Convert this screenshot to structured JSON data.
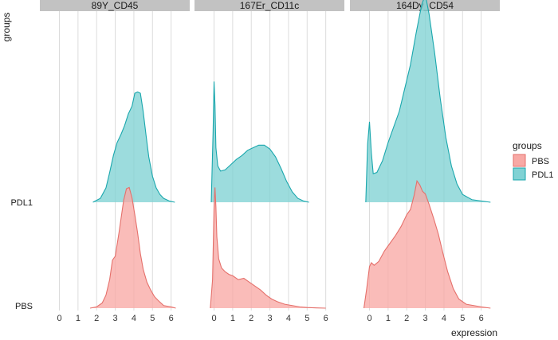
{
  "chart_data": {
    "type": "ridgeline",
    "xlabel": "expression",
    "ylabel": "groups",
    "x_ticks": [
      0,
      1,
      2,
      3,
      4,
      5,
      6
    ],
    "xlim": [
      -1.05,
      7.0
    ],
    "groups": [
      "PBS",
      "PDL1"
    ],
    "legend": {
      "title": "groups",
      "position": "right",
      "entries": [
        {
          "label": "PBS",
          "fill": "#f8a9a5",
          "line": "#e5706b"
        },
        {
          "label": "PDL1",
          "fill": "#80d2d4",
          "line": "#1aa7ad"
        }
      ]
    },
    "panels": [
      {
        "title": "89Y_CD45",
        "series": [
          {
            "name": "PBS",
            "x": [
              1.65,
              2.0,
              2.3,
              2.5,
              2.7,
              2.85,
              3.0,
              3.2,
              3.45,
              3.6,
              3.75,
              3.9,
              4.05,
              4.2,
              4.35,
              4.5,
              4.7,
              4.9,
              5.1,
              5.3,
              5.6,
              6.0,
              6.25
            ],
            "y": [
              0.0,
              0.01,
              0.04,
              0.1,
              0.22,
              0.37,
              0.4,
              0.58,
              0.83,
              0.92,
              0.93,
              0.85,
              0.72,
              0.58,
              0.42,
              0.3,
              0.2,
              0.14,
              0.09,
              0.06,
              0.02,
              0.01,
              0.0
            ]
          },
          {
            "name": "PDL1",
            "x": [
              1.8,
              2.2,
              2.5,
              2.7,
              2.9,
              3.1,
              3.3,
              3.5,
              3.7,
              3.9,
              4.05,
              4.2,
              4.35,
              4.5,
              4.65,
              4.8,
              5.0,
              5.2,
              5.4,
              5.6,
              5.9,
              6.2
            ],
            "y": [
              0.0,
              0.03,
              0.11,
              0.23,
              0.36,
              0.46,
              0.52,
              0.59,
              0.68,
              0.74,
              0.84,
              0.85,
              0.84,
              0.7,
              0.52,
              0.35,
              0.2,
              0.11,
              0.06,
              0.03,
              0.01,
              0.0
            ]
          }
        ]
      },
      {
        "title": "167Er_CD11c",
        "series": [
          {
            "name": "PBS",
            "x": [
              -0.2,
              -0.08,
              0.0,
              0.05,
              0.1,
              0.15,
              0.25,
              0.4,
              0.6,
              0.8,
              1.0,
              1.3,
              1.6,
              1.9,
              2.2,
              2.5,
              2.8,
              3.1,
              3.4,
              3.8,
              4.2,
              4.6,
              5.0,
              5.5,
              6.0
            ],
            "y": [
              0.0,
              0.22,
              0.78,
              0.93,
              0.78,
              0.55,
              0.38,
              0.31,
              0.28,
              0.26,
              0.25,
              0.22,
              0.23,
              0.2,
              0.17,
              0.14,
              0.1,
              0.07,
              0.05,
              0.03,
              0.02,
              0.01,
              0.005,
              0.002,
              0.0
            ]
          },
          {
            "name": "PDL1",
            "x": [
              -0.15,
              -0.05,
              0.0,
              0.05,
              0.1,
              0.2,
              0.35,
              0.6,
              0.9,
              1.2,
              1.5,
              1.8,
              2.1,
              2.4,
              2.7,
              3.0,
              3.3,
              3.6,
              3.9,
              4.2,
              4.5,
              4.8,
              5.1
            ],
            "y": [
              0.0,
              0.55,
              0.93,
              0.75,
              0.42,
              0.28,
              0.24,
              0.25,
              0.29,
              0.33,
              0.36,
              0.4,
              0.42,
              0.44,
              0.44,
              0.41,
              0.35,
              0.26,
              0.16,
              0.08,
              0.03,
              0.01,
              0.0
            ]
          }
        ]
      },
      {
        "title": "164Dy_CD54",
        "series": [
          {
            "name": "PBS",
            "x": [
              -0.3,
              -0.15,
              0.0,
              0.1,
              0.25,
              0.5,
              0.8,
              1.1,
              1.4,
              1.7,
              2.0,
              2.2,
              2.4,
              2.55,
              2.7,
              2.85,
              3.0,
              3.2,
              3.45,
              3.7,
              3.95,
              4.2,
              4.5,
              4.8,
              5.2,
              5.6,
              6.0,
              6.5
            ],
            "y": [
              0.0,
              0.15,
              0.32,
              0.35,
              0.33,
              0.36,
              0.44,
              0.5,
              0.56,
              0.63,
              0.72,
              0.76,
              0.87,
              0.98,
              0.95,
              0.9,
              0.88,
              0.8,
              0.69,
              0.57,
              0.42,
              0.28,
              0.15,
              0.07,
              0.03,
              0.02,
              0.01,
              0.0
            ]
          },
          {
            "name": "PDL1",
            "x": [
              -0.2,
              -0.1,
              0.0,
              0.1,
              0.2,
              0.4,
              0.7,
              1.0,
              1.3,
              1.6,
              1.9,
              2.2,
              2.5,
              2.8,
              3.0,
              3.2,
              3.5,
              3.8,
              4.1,
              4.4,
              4.7,
              5.0,
              5.5,
              6.0,
              6.5
            ],
            "y": [
              0.0,
              0.45,
              0.62,
              0.38,
              0.22,
              0.23,
              0.32,
              0.46,
              0.58,
              0.7,
              0.88,
              1.06,
              1.3,
              1.52,
              1.6,
              1.45,
              1.15,
              0.8,
              0.5,
              0.28,
              0.14,
              0.06,
              0.02,
              0.01,
              0.0
            ]
          }
        ]
      }
    ]
  }
}
